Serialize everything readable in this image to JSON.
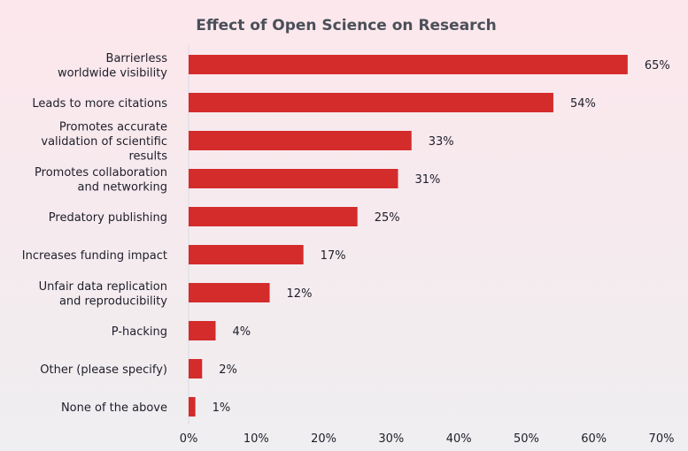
{
  "chart_data": {
    "type": "bar",
    "orientation": "horizontal",
    "title": "Effect of Open Science on Research",
    "categories": [
      [
        "Barrierless",
        "worldwide visibility"
      ],
      [
        "Leads to more citations"
      ],
      [
        "Promotes accurate",
        "validation of scientific",
        "results"
      ],
      [
        "Promotes collaboration",
        "and networking"
      ],
      [
        "Predatory publishing"
      ],
      [
        "Increases funding impact"
      ],
      [
        "Unfair data replication",
        "and reproducibility"
      ],
      [
        "P-hacking"
      ],
      [
        "Other (please specify)"
      ],
      [
        "None of the above"
      ]
    ],
    "values": [
      65,
      54,
      33,
      31,
      25,
      17,
      12,
      4,
      2,
      1
    ],
    "data_labels": [
      "65%",
      "54%",
      "33%",
      "31%",
      "25%",
      "17%",
      "12%",
      "4%",
      "2%",
      "1%"
    ],
    "xlim": [
      0,
      70
    ],
    "x_ticks": [
      "0%",
      "10%",
      "20%",
      "30%",
      "40%",
      "50%",
      "60%",
      "70%"
    ],
    "xlabel": "",
    "ylabel": "",
    "grid": false,
    "bar_color": "#d42b2b"
  }
}
